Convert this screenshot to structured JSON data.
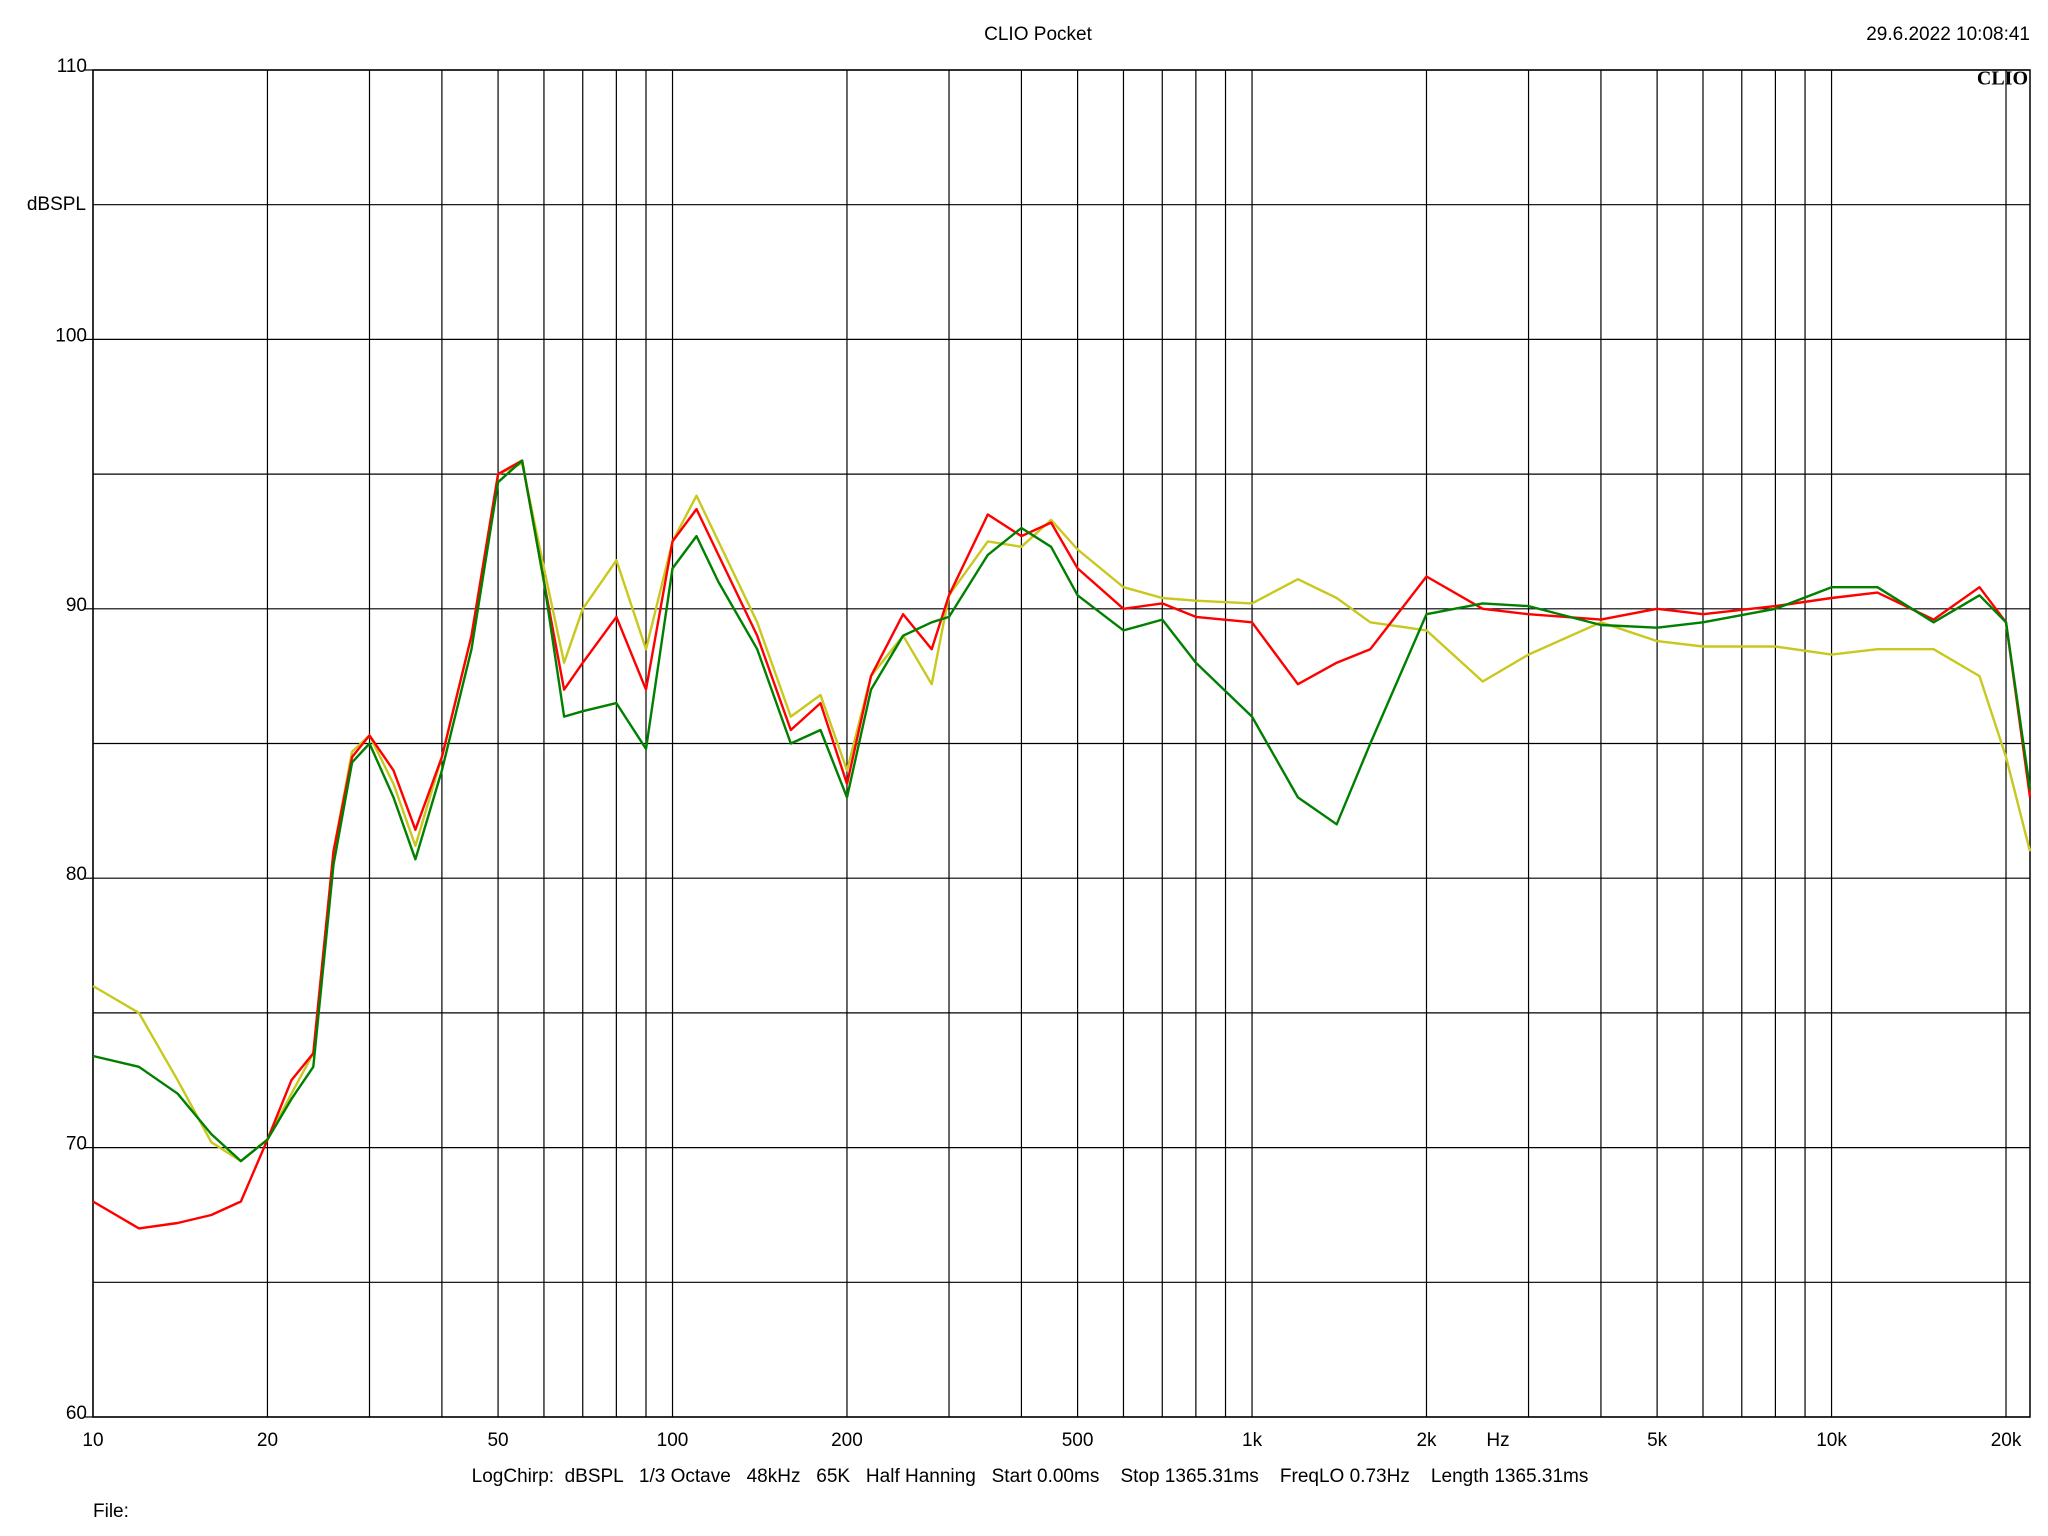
{
  "chart_data": {
    "type": "line",
    "title": "CLIO Pocket",
    "timestamp": "29.6.2022 10:08:41",
    "logo": "CLIO",
    "x_label": "Hz",
    "y_label": "dBSPL",
    "footer": "LogChirp:  dBSPL   1/3 Octave   48kHz   65K   Half Hanning   Start 0.00ms    Stop 1365.31ms    FreqLO 0.73Hz    Length 1365.31ms",
    "file_label": "File:",
    "xscale": "log",
    "grid": true,
    "xlim": [
      10,
      22000
    ],
    "ylim": [
      60,
      110
    ],
    "xticks": [
      10,
      20,
      50,
      100,
      200,
      500,
      {
        "value": 1000,
        "label": "1k"
      },
      {
        "value": 2000,
        "label": "2k"
      },
      {
        "value": 5000,
        "label": "5k"
      },
      {
        "value": 10000,
        "label": "10k"
      },
      {
        "value": 20000,
        "label": "20k"
      }
    ],
    "minor_xticks": [
      30,
      40,
      60,
      70,
      80,
      90,
      300,
      400,
      600,
      700,
      800,
      900,
      3000,
      4000,
      6000,
      7000,
      8000,
      9000
    ],
    "yticks": [
      60,
      70,
      80,
      90,
      100,
      110
    ],
    "minor_yticks": [
      65,
      75,
      85,
      95,
      105
    ],
    "x": [
      10,
      12,
      14,
      16,
      18,
      20,
      22,
      24,
      26,
      28,
      30,
      33,
      36,
      40,
      45,
      50,
      55,
      60,
      65,
      70,
      80,
      90,
      100,
      110,
      120,
      140,
      160,
      180,
      200,
      220,
      250,
      280,
      300,
      350,
      400,
      450,
      500,
      600,
      700,
      800,
      1000,
      1200,
      1400,
      1600,
      2000,
      2500,
      3000,
      4000,
      5000,
      6000,
      8000,
      10000,
      12000,
      15000,
      18000,
      20000,
      22000
    ],
    "series": [
      {
        "color": "#c8c81e",
        "values": [
          76,
          75,
          72.5,
          70.2,
          69.5,
          70.3,
          72,
          73.5,
          81,
          84.7,
          85.3,
          83.5,
          81.2,
          84.5,
          89,
          95,
          95.4,
          91.5,
          88,
          90,
          91.8,
          88.5,
          92.5,
          94.2,
          92.5,
          89.5,
          86,
          86.8,
          84,
          87.5,
          89,
          87.2,
          90.5,
          92.5,
          92.3,
          93.3,
          92.2,
          90.8,
          90.4,
          90.3,
          90.2,
          91.1,
          90.4,
          89.5,
          89.2,
          87.3,
          88.3,
          89.5,
          88.8,
          88.6,
          88.6,
          88.3,
          88.5,
          88.5,
          87.5,
          84.5,
          81
        ]
      },
      {
        "color": "#ff0000",
        "values": [
          68,
          67,
          67.2,
          67.5,
          68,
          70.3,
          72.5,
          73.5,
          81,
          84.5,
          85.3,
          84,
          81.8,
          84.5,
          89,
          95,
          95.5,
          91,
          87,
          88,
          89.7,
          87,
          92.5,
          93.7,
          92,
          89,
          85.5,
          86.5,
          83.5,
          87.5,
          89.8,
          88.5,
          90.5,
          93.5,
          92.7,
          93.2,
          91.5,
          90,
          90.2,
          89.7,
          89.5,
          87.2,
          88,
          88.5,
          91.2,
          90,
          89.8,
          89.6,
          90,
          89.8,
          90.1,
          90.4,
          90.6,
          89.6,
          90.8,
          89.5,
          83
        ]
      },
      {
        "color": "#008000",
        "values": [
          73.4,
          73,
          72,
          70.5,
          69.5,
          70.3,
          71.8,
          73,
          80.5,
          84.3,
          85,
          83,
          80.7,
          84,
          88.5,
          94.7,
          95.5,
          91,
          86,
          86.2,
          86.5,
          84.8,
          91.5,
          92.7,
          91,
          88.5,
          85,
          85.5,
          83,
          87,
          89,
          89.5,
          89.7,
          92,
          93,
          92.3,
          90.5,
          89.2,
          89.6,
          88,
          86,
          83,
          82,
          85,
          89.8,
          90.2,
          90.1,
          89.4,
          89.3,
          89.5,
          90,
          90.8,
          90.8,
          89.5,
          90.5,
          89.5,
          83.3
        ]
      }
    ]
  }
}
